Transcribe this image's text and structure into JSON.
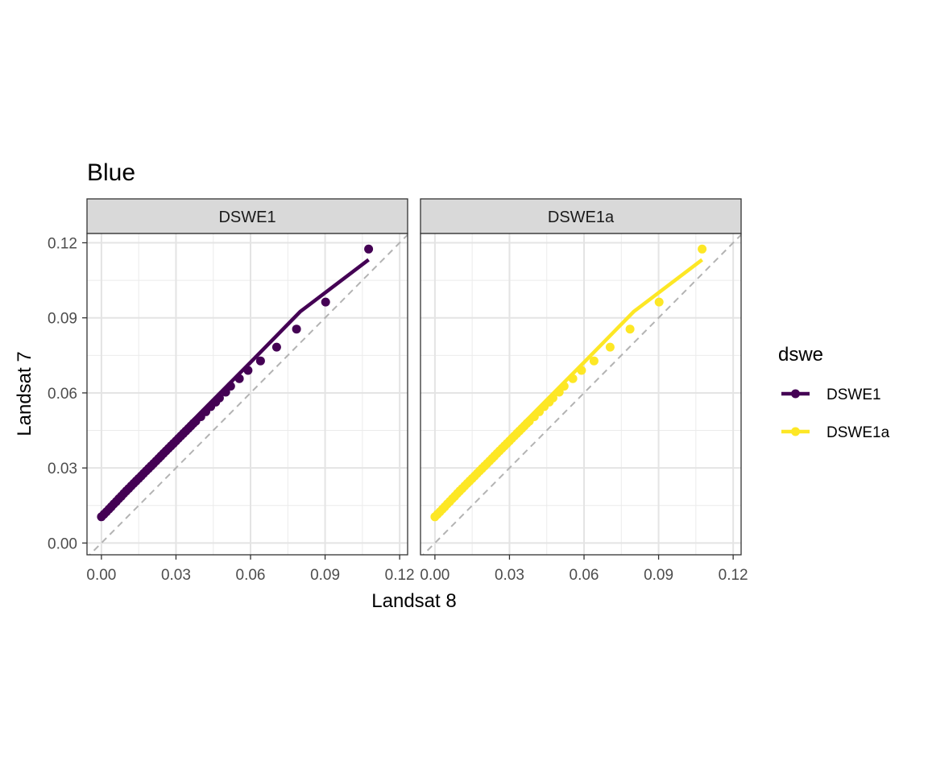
{
  "chart_data": {
    "type": "scatter",
    "title": "Blue",
    "xlabel": "Landsat 8",
    "ylabel": "Landsat 7",
    "xlim": [
      -0.0058,
      0.1232
    ],
    "ylim": [
      -0.0047,
      0.1237
    ],
    "x_ticks": [
      0.0,
      0.03,
      0.06,
      0.09,
      0.12
    ],
    "x_tick_labels": [
      "0.00",
      "0.03",
      "0.06",
      "0.09",
      "0.12"
    ],
    "y_ticks": [
      0.0,
      0.03,
      0.06,
      0.09,
      0.12
    ],
    "y_tick_labels": [
      "0.00",
      "0.03",
      "0.06",
      "0.09",
      "0.12"
    ],
    "grid": true,
    "reference_line": "y = x (dashed)",
    "legend": {
      "title": "dswe",
      "position": "right",
      "entries": [
        {
          "label": "DSWE1",
          "color": "#440154"
        },
        {
          "label": "DSWE1a",
          "color": "#FDE725"
        }
      ]
    },
    "series": [
      {
        "name": "DSWE1",
        "panel": "DSWE1",
        "color": "#440154",
        "points": [
          [
            0.0,
            0.0105
          ],
          [
            0.001,
            0.0115
          ],
          [
            0.002,
            0.0125
          ],
          [
            0.003,
            0.0135
          ],
          [
            0.004,
            0.0145
          ],
          [
            0.005,
            0.0156
          ],
          [
            0.006,
            0.0166
          ],
          [
            0.007,
            0.0177
          ],
          [
            0.008,
            0.0187
          ],
          [
            0.009,
            0.0198
          ],
          [
            0.01,
            0.0208
          ],
          [
            0.011,
            0.0218
          ],
          [
            0.012,
            0.0228
          ],
          [
            0.013,
            0.0238
          ],
          [
            0.014,
            0.0248
          ],
          [
            0.015,
            0.0258
          ],
          [
            0.016,
            0.0268
          ],
          [
            0.017,
            0.0278
          ],
          [
            0.018,
            0.0288
          ],
          [
            0.019,
            0.0298
          ],
          [
            0.02,
            0.0308
          ],
          [
            0.021,
            0.0318
          ],
          [
            0.022,
            0.0328
          ],
          [
            0.023,
            0.0338
          ],
          [
            0.024,
            0.0348
          ],
          [
            0.025,
            0.0358
          ],
          [
            0.026,
            0.0368
          ],
          [
            0.027,
            0.0378
          ],
          [
            0.028,
            0.0388
          ],
          [
            0.029,
            0.0398
          ],
          [
            0.03,
            0.0408
          ],
          [
            0.031,
            0.0418
          ],
          [
            0.032,
            0.0428
          ],
          [
            0.033,
            0.0438
          ],
          [
            0.034,
            0.0448
          ],
          [
            0.035,
            0.0458
          ],
          [
            0.036,
            0.0468
          ],
          [
            0.037,
            0.0478
          ],
          [
            0.038,
            0.0487
          ],
          [
            0.04,
            0.0505
          ],
          [
            0.042,
            0.0525
          ],
          [
            0.044,
            0.0545
          ],
          [
            0.046,
            0.0563
          ],
          [
            0.0475,
            0.058
          ],
          [
            0.05,
            0.0603
          ],
          [
            0.052,
            0.0627
          ],
          [
            0.0555,
            0.0657
          ],
          [
            0.059,
            0.069
          ],
          [
            0.064,
            0.0728
          ],
          [
            0.0705,
            0.0783
          ],
          [
            0.0785,
            0.0855
          ],
          [
            0.0902,
            0.0963
          ],
          [
            0.1075,
            0.1175
          ]
        ],
        "fit_line": [
          [
            0.0,
            0.0105
          ],
          [
            0.02,
            0.032
          ],
          [
            0.04,
            0.0522
          ],
          [
            0.06,
            0.0722
          ],
          [
            0.08,
            0.0925
          ],
          [
            0.1075,
            0.1132
          ]
        ]
      },
      {
        "name": "DSWE1a",
        "panel": "DSWE1a",
        "color": "#FDE725",
        "points": [
          [
            0.0,
            0.0105
          ],
          [
            0.001,
            0.0115
          ],
          [
            0.002,
            0.0125
          ],
          [
            0.003,
            0.0135
          ],
          [
            0.004,
            0.0145
          ],
          [
            0.005,
            0.0156
          ],
          [
            0.006,
            0.0166
          ],
          [
            0.007,
            0.0177
          ],
          [
            0.008,
            0.0187
          ],
          [
            0.009,
            0.0198
          ],
          [
            0.01,
            0.0208
          ],
          [
            0.011,
            0.0218
          ],
          [
            0.012,
            0.0228
          ],
          [
            0.013,
            0.0238
          ],
          [
            0.014,
            0.0248
          ],
          [
            0.015,
            0.0258
          ],
          [
            0.016,
            0.0268
          ],
          [
            0.017,
            0.0278
          ],
          [
            0.018,
            0.0288
          ],
          [
            0.019,
            0.0298
          ],
          [
            0.02,
            0.0308
          ],
          [
            0.021,
            0.0318
          ],
          [
            0.022,
            0.0328
          ],
          [
            0.023,
            0.0338
          ],
          [
            0.024,
            0.0348
          ],
          [
            0.025,
            0.0358
          ],
          [
            0.026,
            0.0368
          ],
          [
            0.027,
            0.0378
          ],
          [
            0.028,
            0.0388
          ],
          [
            0.029,
            0.0398
          ],
          [
            0.03,
            0.0408
          ],
          [
            0.031,
            0.0418
          ],
          [
            0.032,
            0.0428
          ],
          [
            0.033,
            0.0438
          ],
          [
            0.034,
            0.0448
          ],
          [
            0.035,
            0.0458
          ],
          [
            0.036,
            0.0468
          ],
          [
            0.037,
            0.0478
          ],
          [
            0.038,
            0.0487
          ],
          [
            0.04,
            0.0505
          ],
          [
            0.042,
            0.0525
          ],
          [
            0.044,
            0.0545
          ],
          [
            0.046,
            0.0563
          ],
          [
            0.0475,
            0.058
          ],
          [
            0.05,
            0.0603
          ],
          [
            0.052,
            0.0627
          ],
          [
            0.0555,
            0.0657
          ],
          [
            0.059,
            0.069
          ],
          [
            0.064,
            0.0728
          ],
          [
            0.0705,
            0.0783
          ],
          [
            0.0785,
            0.0855
          ],
          [
            0.0902,
            0.0963
          ],
          [
            0.1075,
            0.1175
          ]
        ],
        "fit_line": [
          [
            0.0,
            0.0105
          ],
          [
            0.02,
            0.032
          ],
          [
            0.04,
            0.0522
          ],
          [
            0.06,
            0.0722
          ],
          [
            0.08,
            0.0925
          ],
          [
            0.1075,
            0.1132
          ]
        ]
      }
    ]
  }
}
